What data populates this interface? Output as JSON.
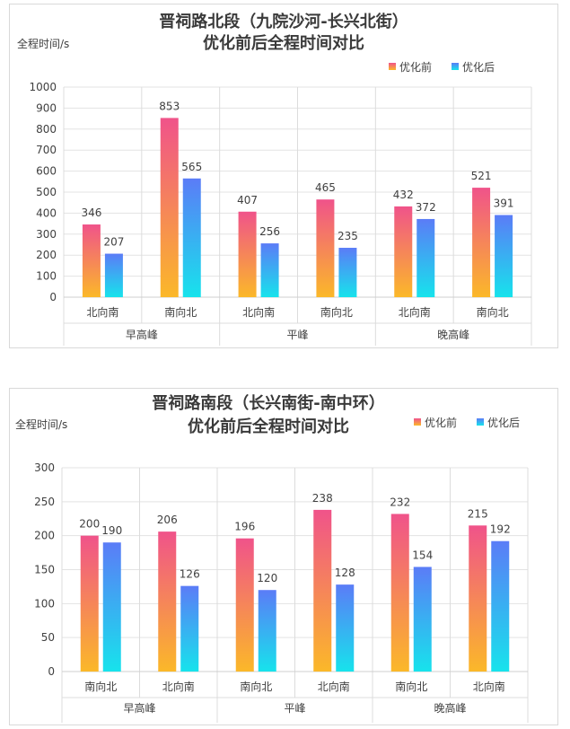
{
  "chart_data": [
    {
      "type": "bar",
      "title": [
        "晋祠路北段（九院沙河-长兴北街）",
        "优化前后全程时间对比"
      ],
      "ylabel": "全程时间/s",
      "ylim": [
        0,
        1000
      ],
      "yticks": [
        0,
        100,
        200,
        300,
        400,
        500,
        600,
        700,
        800,
        900,
        1000
      ],
      "legend_position": "top-right",
      "grid": true,
      "categories": [
        "北向南",
        "南向北",
        "北向南",
        "南向北",
        "北向南",
        "南向北"
      ],
      "groups": [
        {
          "label": "早高峰",
          "span": 2
        },
        {
          "label": "平峰",
          "span": 2
        },
        {
          "label": "晚高峰",
          "span": 2
        }
      ],
      "series": [
        {
          "name": "优化前",
          "values": [
            346,
            853,
            407,
            465,
            432,
            521
          ],
          "gradient": [
            "#f0538a",
            "#fbb829"
          ]
        },
        {
          "name": "优化后",
          "values": [
            207,
            565,
            256,
            235,
            372,
            391
          ],
          "gradient": [
            "#5b7cf7",
            "#17e3ec"
          ]
        }
      ]
    },
    {
      "type": "bar",
      "title": [
        "晋祠路南段（长兴南街-南中环）",
        "优化前后全程时间对比"
      ],
      "ylabel": "全程时间/s",
      "ylim": [
        0,
        300
      ],
      "yticks": [
        0,
        50,
        100,
        150,
        200,
        250,
        300
      ],
      "legend_position": "top-right",
      "grid": true,
      "categories": [
        "南向北",
        "北向南",
        "南向北",
        "北向南",
        "南向北",
        "北向南"
      ],
      "groups": [
        {
          "label": "早高峰",
          "span": 2
        },
        {
          "label": "平峰",
          "span": 2
        },
        {
          "label": "晚高峰",
          "span": 2
        }
      ],
      "series": [
        {
          "name": "优化前",
          "values": [
            200,
            206,
            196,
            238,
            232,
            215
          ],
          "gradient": [
            "#f0538a",
            "#fbb829"
          ]
        },
        {
          "name": "优化后",
          "values": [
            190,
            126,
            120,
            128,
            154,
            192
          ],
          "gradient": [
            "#5b7cf7",
            "#17e3ec"
          ]
        }
      ]
    }
  ]
}
